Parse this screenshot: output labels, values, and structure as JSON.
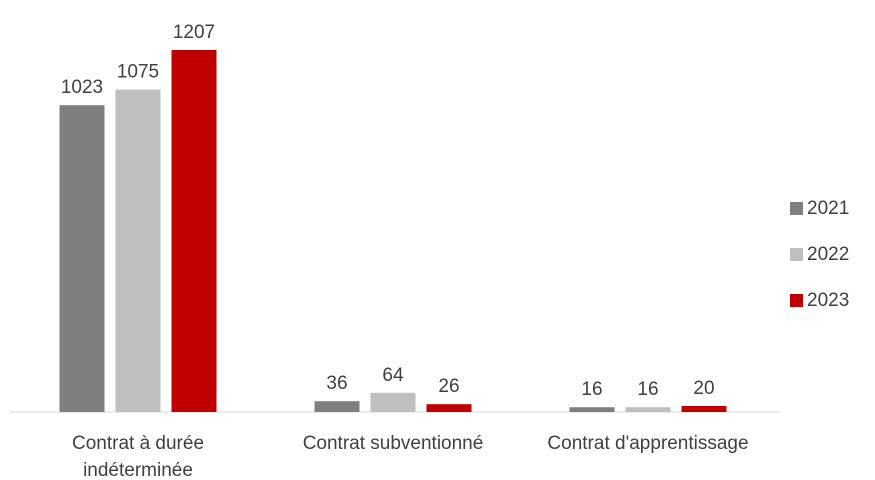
{
  "chart_data": {
    "type": "bar",
    "title": "",
    "xlabel": "",
    "ylabel": "",
    "categories": [
      [
        "Contrat à durée",
        "indéterminée"
      ],
      [
        "Contrat subventionné"
      ],
      [
        "Contrat d'apprentissage"
      ]
    ],
    "series": [
      {
        "name": "2021",
        "color": "#7f7f7f",
        "values": [
          1023,
          36,
          16
        ]
      },
      {
        "name": "2022",
        "color": "#bfbfbf",
        "values": [
          1075,
          64,
          16
        ]
      },
      {
        "name": "2023",
        "color": "#c00000",
        "values": [
          1207,
          26,
          20
        ]
      }
    ],
    "ylim": [
      0,
      1207
    ],
    "grid": false,
    "legend_position": "right"
  }
}
